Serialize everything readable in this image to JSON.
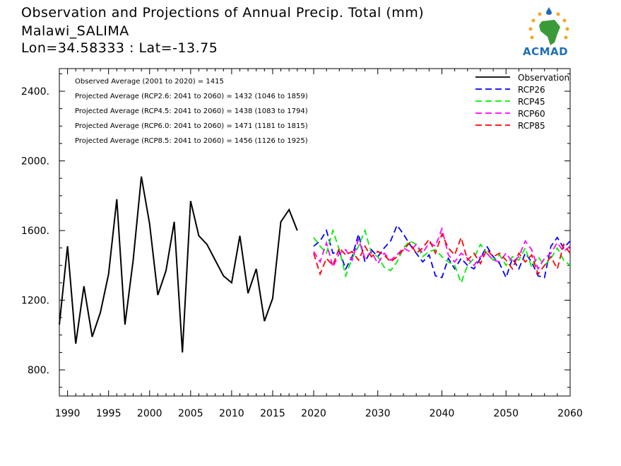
{
  "header": {
    "title": "Observation and Projections of Annual Precip. Total (mm)",
    "location": "Malawi_SALIMA",
    "coords": "Lon=34.58333 : Lat=-13.75"
  },
  "logo": {
    "text": "ACMAD"
  },
  "chart_data": {
    "type": "line",
    "xlim": [
      1989,
      2060
    ],
    "ylim": [
      650,
      2530
    ],
    "x_ticks": [
      1990,
      1995,
      2000,
      2005,
      2010,
      2015,
      2020,
      2030,
      2040,
      2050,
      2060
    ],
    "y_ticks": [
      800,
      1200,
      1600,
      2000,
      2400
    ],
    "y_tick_labels": [
      "800.",
      "1200.",
      "1600.",
      "2000.",
      "2400."
    ],
    "annotations": [
      "Observed Average (2001 to 2020) = 1415",
      "Projected Average (RCP2.6: 2041 to 2060) = 1432 (1046 to 1859)",
      "Projected Average (RCP4.5: 2041 to 2060) = 1438 (1083 to 1794)",
      "Projected Average (RCP6.0: 2041 to 2060) = 1471 (1181 to 1815)",
      "Projected Average (RCP8.5: 2041 to 2060) = 1456 (1126 to 1925)"
    ],
    "series": [
      {
        "name": "Observation",
        "color": "#000000",
        "dash": "solid",
        "x": [
          1989,
          1990,
          1991,
          1992,
          1993,
          1994,
          1995,
          1996,
          1997,
          1998,
          1999,
          2000,
          2001,
          2002,
          2003,
          2004,
          2005,
          2006,
          2007,
          2008,
          2009,
          2010,
          2011,
          2012,
          2013,
          2014,
          2015,
          2016,
          2017,
          2018,
          2019,
          2020
        ],
        "y": [
          1060,
          1510,
          950,
          1280,
          990,
          1130,
          1350,
          1780,
          1060,
          1430,
          1910,
          1640,
          1230,
          1370,
          1650,
          900,
          1770,
          1570,
          1520,
          1430,
          1340,
          1300,
          1570,
          1240,
          1380,
          1080,
          1210,
          1650,
          1720,
          1600,
          null,
          null
        ]
      },
      {
        "name": "RCP26",
        "color": "#0000ff",
        "dash": "dashed",
        "x": [
          2020,
          2021,
          2022,
          2023,
          2024,
          2025,
          2026,
          2027,
          2028,
          2029,
          2030,
          2031,
          2032,
          2033,
          2034,
          2035,
          2036,
          2037,
          2038,
          2039,
          2040,
          2041,
          2042,
          2043,
          2044,
          2045,
          2046,
          2047,
          2048,
          2049,
          2050,
          2051,
          2052,
          2053,
          2054,
          2055,
          2056,
          2057,
          2058,
          2059,
          2060
        ],
        "y": [
          1510,
          1540,
          1600,
          1470,
          1480,
          1380,
          1450,
          1580,
          1420,
          1490,
          1450,
          1500,
          1540,
          1630,
          1580,
          1520,
          1470,
          1420,
          1460,
          1340,
          1330,
          1440,
          1380,
          1440,
          1400,
          1380,
          1440,
          1510,
          1450,
          1410,
          1330,
          1440,
          1380,
          1470,
          1420,
          1340,
          1330,
          1510,
          1560,
          1500,
          1540
        ]
      },
      {
        "name": "RCP45",
        "color": "#00ee00",
        "dash": "dashed",
        "x": [
          2020,
          2021,
          2022,
          2023,
          2024,
          2025,
          2026,
          2027,
          2028,
          2029,
          2030,
          2031,
          2032,
          2033,
          2034,
          2035,
          2036,
          2037,
          2038,
          2039,
          2040,
          2041,
          2042,
          2043,
          2044,
          2045,
          2046,
          2047,
          2048,
          2049,
          2050,
          2051,
          2052,
          2053,
          2054,
          2055,
          2056,
          2057,
          2058,
          2059,
          2060
        ],
        "y": [
          1560,
          1510,
          1470,
          1600,
          1490,
          1340,
          1440,
          1510,
          1600,
          1470,
          1450,
          1390,
          1370,
          1420,
          1500,
          1540,
          1520,
          1450,
          1480,
          1490,
          1450,
          1420,
          1400,
          1300,
          1400,
          1440,
          1520,
          1470,
          1430,
          1460,
          1400,
          1450,
          1430,
          1500,
          1390,
          1450,
          1400,
          1440,
          1500,
          1430,
          1400
        ]
      },
      {
        "name": "RCP60",
        "color": "#ff00ff",
        "dash": "dashed",
        "x": [
          2020,
          2021,
          2022,
          2023,
          2024,
          2025,
          2026,
          2027,
          2028,
          2029,
          2030,
          2031,
          2032,
          2033,
          2034,
          2035,
          2036,
          2037,
          2038,
          2039,
          2040,
          2041,
          2042,
          2043,
          2044,
          2045,
          2046,
          2047,
          2048,
          2049,
          2050,
          2051,
          2052,
          2053,
          2054,
          2055,
          2056,
          2057,
          2058,
          2059,
          2060
        ],
        "y": [
          1480,
          1420,
          1530,
          1390,
          1470,
          1490,
          1430,
          1550,
          1440,
          1480,
          1410,
          1470,
          1430,
          1460,
          1500,
          1480,
          1520,
          1470,
          1530,
          1510,
          1610,
          1460,
          1420,
          1470,
          1440,
          1400,
          1450,
          1470,
          1430,
          1420,
          1470,
          1420,
          1450,
          1540,
          1490,
          1380,
          1440,
          1470,
          1530,
          1480,
          1510
        ]
      },
      {
        "name": "RCP85",
        "color": "#ff0000",
        "dash": "dashed",
        "x": [
          2020,
          2021,
          2022,
          2023,
          2024,
          2025,
          2026,
          2027,
          2028,
          2029,
          2030,
          2031,
          2032,
          2033,
          2034,
          2035,
          2036,
          2037,
          2038,
          2039,
          2040,
          2041,
          2042,
          2043,
          2044,
          2045,
          2046,
          2047,
          2048,
          2049,
          2050,
          2051,
          2052,
          2053,
          2054,
          2055,
          2056,
          2057,
          2058,
          2059,
          2060
        ],
        "y": [
          1470,
          1350,
          1440,
          1400,
          1500,
          1460,
          1480,
          1430,
          1510,
          1450,
          1480,
          1460,
          1420,
          1450,
          1490,
          1530,
          1470,
          1500,
          1550,
          1470,
          1580,
          1500,
          1460,
          1560,
          1430,
          1470,
          1410,
          1490,
          1450,
          1470,
          1430,
          1380,
          1470,
          1420,
          1460,
          1350,
          1400,
          1450,
          1380,
          1520,
          1470
        ]
      }
    ]
  }
}
